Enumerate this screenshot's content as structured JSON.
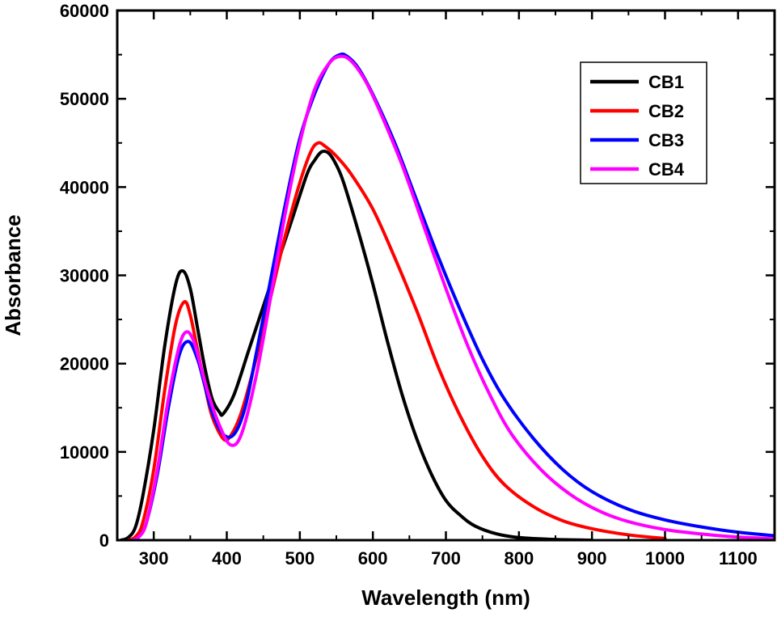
{
  "chart_data": {
    "type": "line",
    "title": "",
    "xlabel": "Wavelength (nm)",
    "ylabel": "Absorbance",
    "xlim": [
      250,
      1150
    ],
    "ylim": [
      0,
      60000
    ],
    "x_ticks": [
      300,
      400,
      500,
      600,
      700,
      800,
      900,
      1000,
      1100
    ],
    "x_tick_labels": [
      "300",
      "400",
      "500",
      "600",
      "700",
      "800",
      "900",
      "1000",
      "1100"
    ],
    "y_ticks": [
      0,
      10000,
      20000,
      30000,
      40000,
      50000,
      60000
    ],
    "y_tick_labels": [
      "0",
      "10000",
      "20000",
      "30000",
      "40000",
      "50000",
      "60000"
    ],
    "grid": false,
    "legend_position": "top-right",
    "series": [
      {
        "name": "CB1",
        "color": "#000000",
        "points": [
          [
            255,
            0
          ],
          [
            265,
            300
          ],
          [
            275,
            1500
          ],
          [
            285,
            5000
          ],
          [
            300,
            12500
          ],
          [
            315,
            22000
          ],
          [
            330,
            29000
          ],
          [
            340,
            30500
          ],
          [
            350,
            28500
          ],
          [
            360,
            24000
          ],
          [
            370,
            19500
          ],
          [
            380,
            16000
          ],
          [
            390,
            14500
          ],
          [
            395,
            14300
          ],
          [
            410,
            16500
          ],
          [
            430,
            21500
          ],
          [
            450,
            26500
          ],
          [
            470,
            31500
          ],
          [
            490,
            36500
          ],
          [
            510,
            41500
          ],
          [
            520,
            43000
          ],
          [
            530,
            44000
          ],
          [
            540,
            43800
          ],
          [
            550,
            42500
          ],
          [
            560,
            40500
          ],
          [
            580,
            35000
          ],
          [
            600,
            29000
          ],
          [
            620,
            22500
          ],
          [
            640,
            16500
          ],
          [
            660,
            11500
          ],
          [
            680,
            7500
          ],
          [
            700,
            4500
          ],
          [
            720,
            2800
          ],
          [
            740,
            1600
          ],
          [
            770,
            700
          ],
          [
            800,
            300
          ],
          [
            850,
            80
          ],
          [
            900,
            0
          ]
        ]
      },
      {
        "name": "CB2",
        "color": "#ff0000",
        "points": [
          [
            265,
            0
          ],
          [
            275,
            400
          ],
          [
            285,
            2000
          ],
          [
            300,
            8000
          ],
          [
            315,
            17000
          ],
          [
            330,
            24500
          ],
          [
            342,
            27000
          ],
          [
            350,
            25500
          ],
          [
            360,
            21500
          ],
          [
            370,
            17500
          ],
          [
            380,
            14000
          ],
          [
            395,
            11500
          ],
          [
            405,
            11800
          ],
          [
            420,
            14500
          ],
          [
            440,
            20500
          ],
          [
            460,
            27500
          ],
          [
            480,
            34500
          ],
          [
            500,
            40500
          ],
          [
            515,
            44000
          ],
          [
            525,
            45000
          ],
          [
            535,
            44600
          ],
          [
            550,
            43500
          ],
          [
            570,
            41500
          ],
          [
            600,
            37500
          ],
          [
            630,
            32000
          ],
          [
            660,
            26000
          ],
          [
            690,
            19500
          ],
          [
            720,
            14000
          ],
          [
            750,
            9500
          ],
          [
            780,
            6300
          ],
          [
            820,
            3800
          ],
          [
            860,
            2200
          ],
          [
            900,
            1300
          ],
          [
            950,
            600
          ],
          [
            1000,
            200
          ]
        ]
      },
      {
        "name": "CB3",
        "color": "#0000ff",
        "points": [
          [
            270,
            0
          ],
          [
            280,
            400
          ],
          [
            290,
            2000
          ],
          [
            305,
            7500
          ],
          [
            320,
            15000
          ],
          [
            335,
            21000
          ],
          [
            348,
            22500
          ],
          [
            360,
            20500
          ],
          [
            370,
            17500
          ],
          [
            380,
            14500
          ],
          [
            395,
            12000
          ],
          [
            410,
            12000
          ],
          [
            425,
            15000
          ],
          [
            440,
            21000
          ],
          [
            460,
            29500
          ],
          [
            480,
            38000
          ],
          [
            500,
            45500
          ],
          [
            520,
            50500
          ],
          [
            540,
            54000
          ],
          [
            555,
            55000
          ],
          [
            565,
            54800
          ],
          [
            580,
            53500
          ],
          [
            600,
            50500
          ],
          [
            630,
            45000
          ],
          [
            660,
            38500
          ],
          [
            690,
            32000
          ],
          [
            720,
            26000
          ],
          [
            750,
            20500
          ],
          [
            780,
            16000
          ],
          [
            820,
            11500
          ],
          [
            860,
            8000
          ],
          [
            900,
            5500
          ],
          [
            950,
            3500
          ],
          [
            1000,
            2300
          ],
          [
            1050,
            1500
          ],
          [
            1100,
            900
          ],
          [
            1150,
            500
          ]
        ]
      },
      {
        "name": "CB4",
        "color": "#ff00ff",
        "points": [
          [
            270,
            0
          ],
          [
            280,
            400
          ],
          [
            290,
            2000
          ],
          [
            305,
            8000
          ],
          [
            320,
            16000
          ],
          [
            335,
            22000
          ],
          [
            345,
            23600
          ],
          [
            355,
            22500
          ],
          [
            365,
            19500
          ],
          [
            375,
            16500
          ],
          [
            390,
            13000
          ],
          [
            405,
            10800
          ],
          [
            420,
            12000
          ],
          [
            440,
            18500
          ],
          [
            460,
            27500
          ],
          [
            480,
            37000
          ],
          [
            500,
            45000
          ],
          [
            520,
            51000
          ],
          [
            540,
            54000
          ],
          [
            555,
            54800
          ],
          [
            570,
            54300
          ],
          [
            590,
            52000
          ],
          [
            610,
            48500
          ],
          [
            640,
            42500
          ],
          [
            670,
            35500
          ],
          [
            700,
            28500
          ],
          [
            730,
            22000
          ],
          [
            760,
            16500
          ],
          [
            790,
            12000
          ],
          [
            830,
            8000
          ],
          [
            870,
            5200
          ],
          [
            910,
            3300
          ],
          [
            950,
            2100
          ],
          [
            1000,
            1200
          ],
          [
            1050,
            700
          ],
          [
            1100,
            350
          ],
          [
            1150,
            150
          ]
        ]
      }
    ]
  }
}
